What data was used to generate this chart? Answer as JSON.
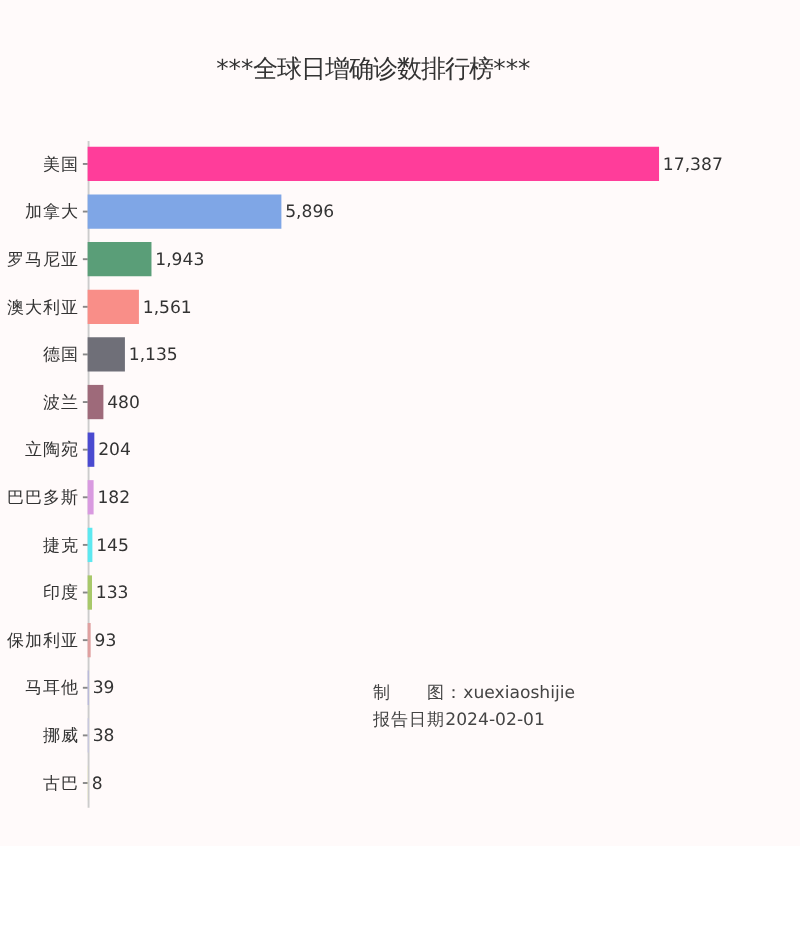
{
  "chart_data": {
    "type": "bar",
    "orientation": "horizontal",
    "title": "***全球日增确诊数排行榜***",
    "categories": [
      "美国",
      "加拿大",
      "罗马尼亚",
      "澳大利亚",
      "德国",
      "波兰",
      "立陶宛",
      "巴巴多斯",
      "捷克",
      "印度",
      "保加利亚",
      "马耳他",
      "挪威",
      "古巴"
    ],
    "values": [
      17387,
      5896,
      1943,
      1561,
      1135,
      480,
      204,
      182,
      145,
      133,
      93,
      39,
      38,
      8
    ],
    "colors": [
      "#ff3d9a",
      "#7fa6e6",
      "#5a9e78",
      "#f98e88",
      "#6f6f78",
      "#9e6a7a",
      "#4a4ad0",
      "#d99ae0",
      "#5de8f0",
      "#a8c86a",
      "#e0a0a0",
      "#b8b8dc",
      "#c8c8e0",
      "#f0f0b0"
    ],
    "value_labels": [
      "17,387",
      "5,896",
      "1,943",
      "1,561",
      "1,135",
      "480",
      "204",
      "182",
      "145",
      "133",
      "93",
      "39",
      "38",
      "8"
    ],
    "annotations": [
      "制　　图：xuexiaoshijie",
      "报告日期2024-02-01"
    ]
  }
}
